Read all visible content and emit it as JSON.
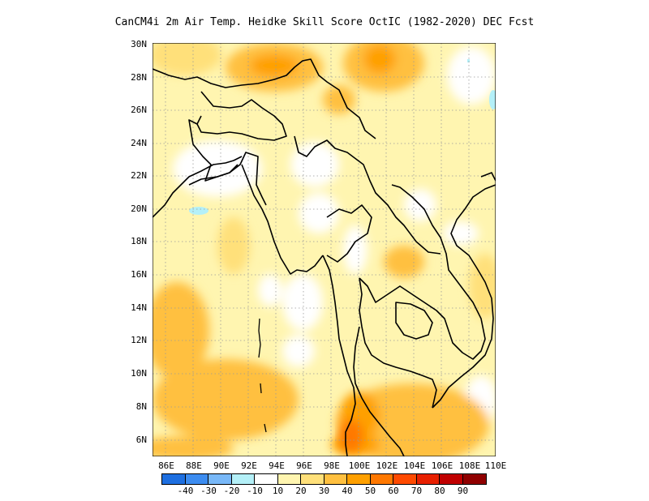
{
  "title": "CanCM4i  2m Air Temp. Heidke Skill Score OctIC (1982-2020) DEC Fcst",
  "lat_labels": [
    "30N",
    "28N",
    "26N",
    "24N",
    "22N",
    "20N",
    "18N",
    "16N",
    "14N",
    "12N",
    "10N",
    "8N",
    "6N"
  ],
  "lon_labels": [
    "86E",
    "88E",
    "90E",
    "92E",
    "94E",
    "96E",
    "98E",
    "100E",
    "102E",
    "104E",
    "106E",
    "108E",
    "110E"
  ],
  "colorbar": {
    "colors": [
      "#1e6fe0",
      "#3c8cf0",
      "#78b8f8",
      "#b4f0f8",
      "#ffffff",
      "#fff5b0",
      "#ffe07a",
      "#ffc040",
      "#ffa000",
      "#ff7800",
      "#ff4a00",
      "#e82000",
      "#c00000",
      "#900000"
    ],
    "labels": [
      "-40",
      "-30",
      "-20",
      "-10",
      "10",
      "20",
      "30",
      "40",
      "50",
      "60",
      "70",
      "80",
      "90"
    ]
  },
  "map": {
    "lon_range": [
      85,
      110
    ],
    "lat_range": [
      5,
      30
    ],
    "background_color": "#fff5b0",
    "coastline_color": "#000000",
    "grid": "dotted"
  }
}
